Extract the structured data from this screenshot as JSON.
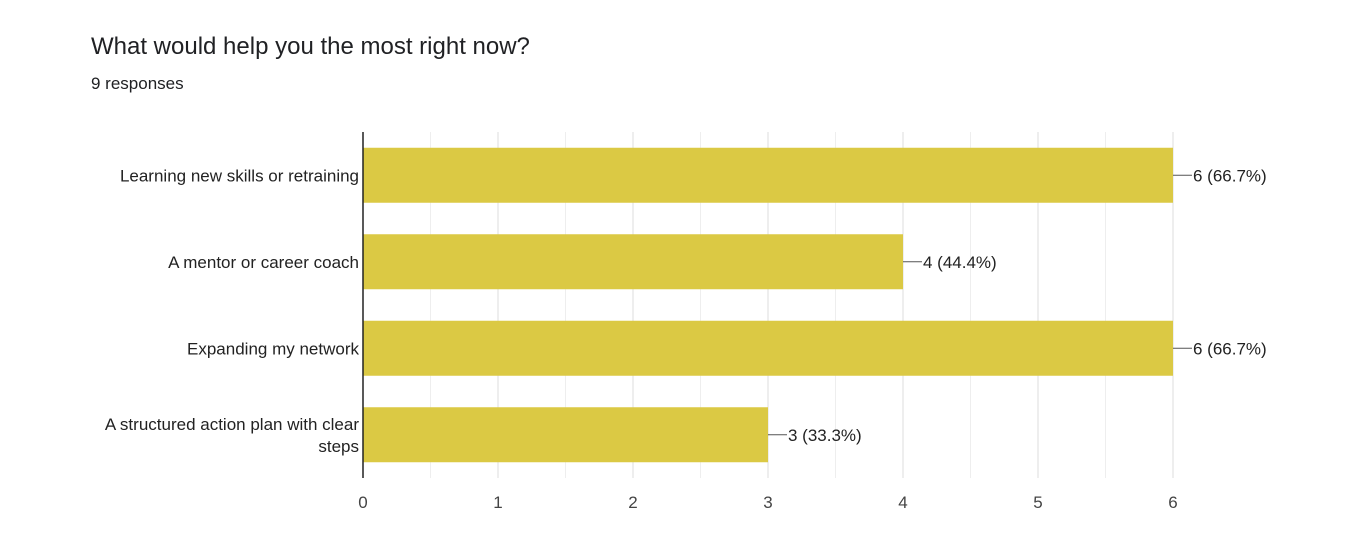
{
  "title": "What would help you the most right now?",
  "subtitle": "9 responses",
  "colors": {
    "bar": "#dbc944",
    "grid": "#e6e6e6",
    "axis": "#222222"
  },
  "chart_data": {
    "type": "bar",
    "orientation": "horizontal",
    "categories": [
      [
        "Learning new skills or retraining"
      ],
      [
        "A mentor or career coach"
      ],
      [
        "Expanding my network"
      ],
      [
        "A structured action plan with clear",
        "steps"
      ]
    ],
    "values": [
      6,
      4,
      6,
      3
    ],
    "data_labels": [
      "6 (66.7%)",
      "4 (44.4%)",
      "6 (66.7%)",
      "3 (33.3%)"
    ],
    "xlim": [
      0,
      6
    ],
    "xticks": [
      0,
      1,
      2,
      3,
      4,
      5,
      6
    ],
    "grid": true,
    "legend": "none"
  }
}
